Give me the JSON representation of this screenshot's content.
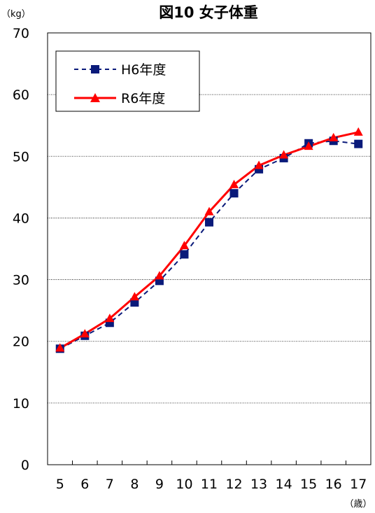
{
  "chart_data": {
    "type": "line",
    "title": "図10 女子体重",
    "y_unit": "（kg）",
    "x_unit": "（歳）",
    "categories": [
      "5",
      "6",
      "7",
      "8",
      "9",
      "10",
      "11",
      "12",
      "13",
      "14",
      "15",
      "16",
      "17"
    ],
    "ylim": [
      0,
      70
    ],
    "yticks": [
      0,
      10,
      20,
      30,
      40,
      50,
      60,
      70
    ],
    "grid": "horizontal dotted",
    "legend_placement": "top-left",
    "series": [
      {
        "name": "H6年度",
        "marker": "square",
        "line_style": "dashed",
        "color": "#0a1a7a",
        "values": [
          18.8,
          20.9,
          23.0,
          26.3,
          29.8,
          34.1,
          39.3,
          44.0,
          47.9,
          49.7,
          52.1,
          52.5,
          52.0
        ]
      },
      {
        "name": "R6年度",
        "marker": "triangle",
        "line_style": "solid",
        "color": "#ff0000",
        "values": [
          18.9,
          21.2,
          23.7,
          27.2,
          30.6,
          35.5,
          41.0,
          45.4,
          48.5,
          50.2,
          51.6,
          53.0,
          53.9
        ]
      }
    ]
  }
}
